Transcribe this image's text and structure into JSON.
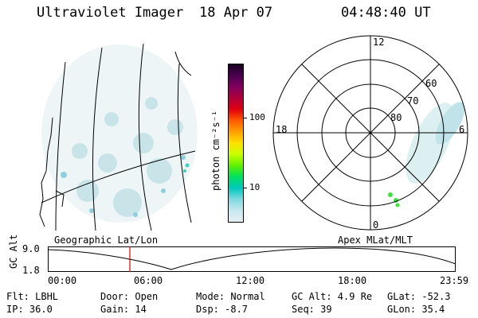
{
  "header": {
    "instrument": "Ultraviolet Imager",
    "date": "18 Apr 07",
    "time": "04:48:40 UT"
  },
  "colorbar": {
    "units": "photon cm⁻²s⁻¹",
    "tick_100": "100",
    "tick_10": "10",
    "colors": [
      "#1a0022",
      "#4a0050",
      "#800060",
      "#b0003a",
      "#e00010",
      "#ff5a00",
      "#ffa000",
      "#ffe000",
      "#c8ff00",
      "#60f000",
      "#00e060",
      "#00c8c0",
      "#7fd8e0",
      "#c8e8f0",
      "#e8eef4"
    ]
  },
  "polar": {
    "clock_labels": {
      "top": "12",
      "left": "18",
      "right": "6",
      "bottom": "0"
    },
    "lat_labels": [
      "60",
      "70",
      "80"
    ]
  },
  "altitude_plot": {
    "ylabel": "GC Alt",
    "ytick_high": "9.0",
    "ytick_low": "1.8",
    "left_title": "Geographic Lat/Lon",
    "right_title": "Apex MLat/MLT",
    "xticks": [
      "00:00",
      "06:00",
      "12:00",
      "18:00",
      "23:59"
    ],
    "marker_color": "#e00000"
  },
  "info": {
    "flt": "Flt: LBHL",
    "ip": "IP: 36.0",
    "door": "Door: Open",
    "gain": "Gain: 14",
    "mode": "Mode: Normal",
    "dsp": "Dsp:   -8.7",
    "gcalt": "GC Alt: 4.9 Re",
    "seq": "Seq: 39",
    "glat": "GLat: -52.3",
    "glon": "GLon:  35.4"
  }
}
